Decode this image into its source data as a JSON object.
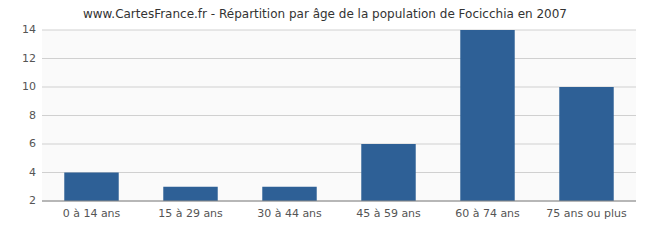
{
  "chart_data": {
    "type": "bar",
    "title": "www.CartesFrance.fr - Répartition par âge de la population de Focicchia en 2007",
    "categories": [
      "0 à 14 ans",
      "15 à 29 ans",
      "30 à 44 ans",
      "45 à 59 ans",
      "60 à 74 ans",
      "75 ans ou plus"
    ],
    "values": [
      4,
      3,
      3,
      6,
      14,
      10
    ],
    "color": "#2e6096",
    "ylim": [
      2,
      14
    ],
    "yticks": [
      2,
      4,
      6,
      8,
      10,
      12,
      14
    ],
    "grid": true
  }
}
